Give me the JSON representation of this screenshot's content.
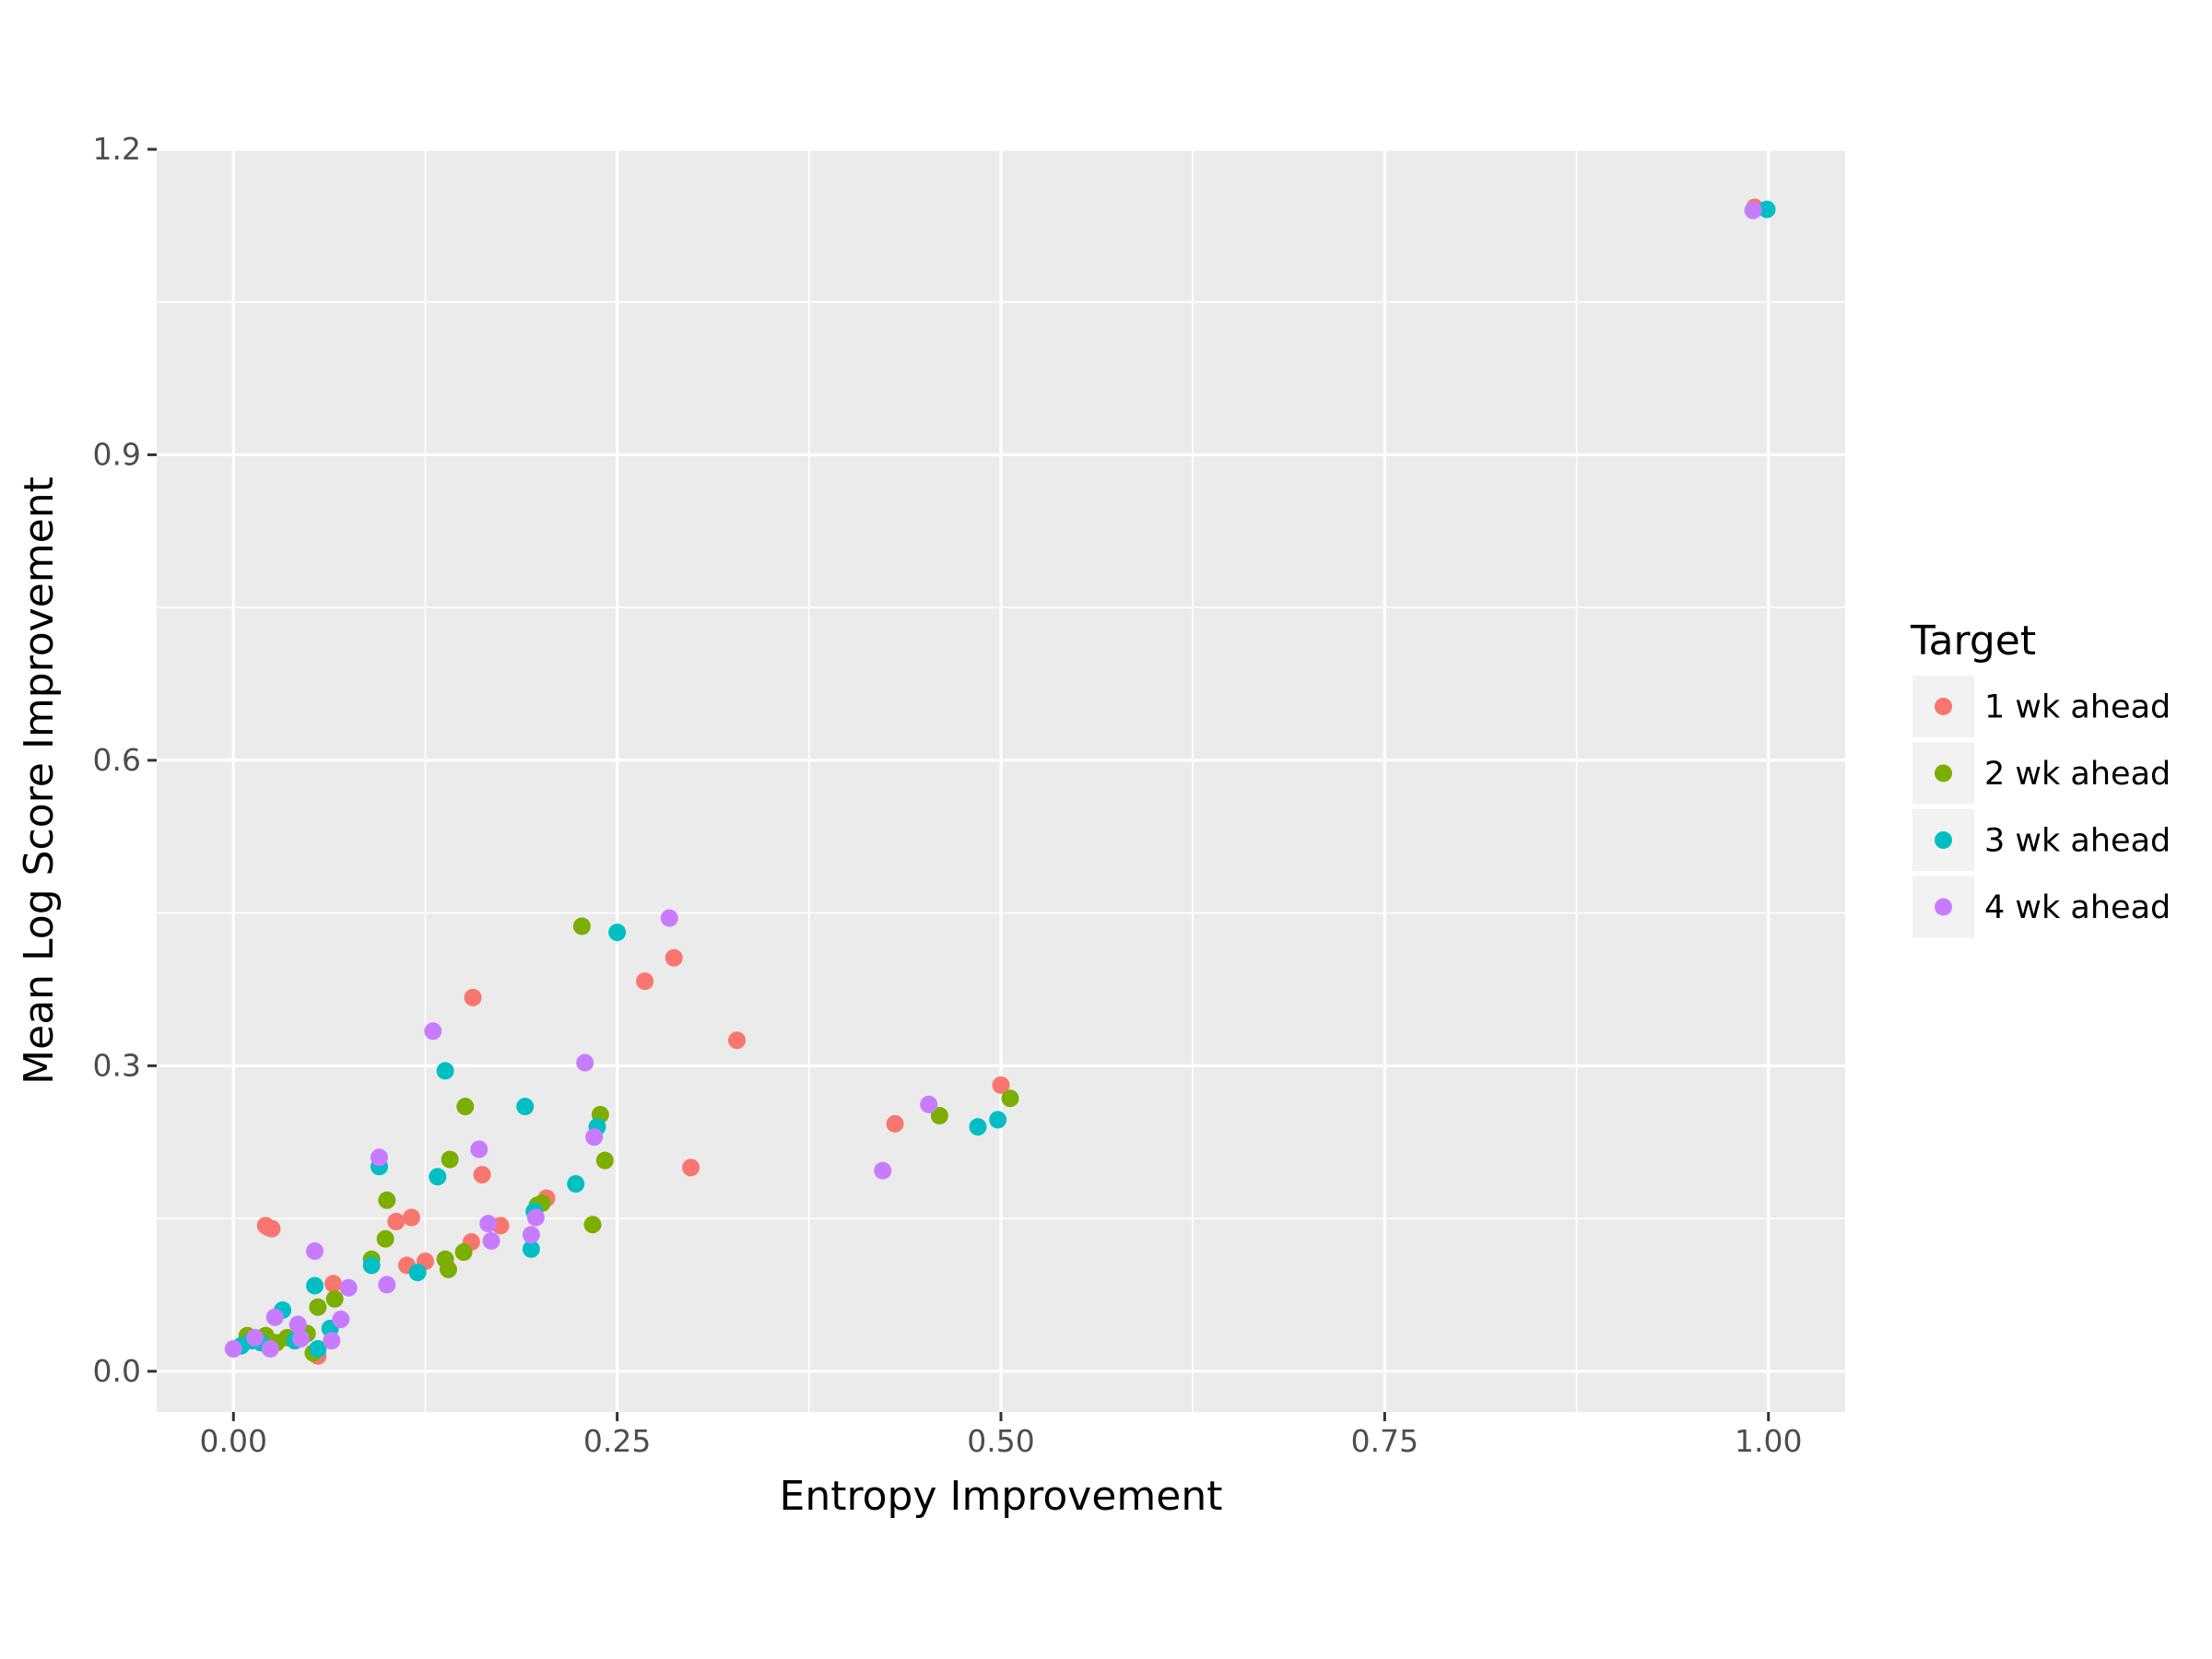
{
  "chart_data": {
    "type": "scatter",
    "title": "",
    "xlabel": "Entropy Improvement",
    "ylabel": "Mean Log Score Improvement",
    "xlim": [
      -0.05,
      1.05
    ],
    "ylim": [
      -0.04,
      1.2
    ],
    "x_ticks": [
      0.0,
      0.25,
      0.5,
      0.75,
      1.0
    ],
    "x_tick_labels": [
      "0.00",
      "0.25",
      "0.50",
      "0.75",
      "1.00"
    ],
    "y_ticks": [
      0.0,
      0.3,
      0.6,
      0.9,
      1.2
    ],
    "y_tick_labels": [
      "0.0",
      "0.3",
      "0.6",
      "0.9",
      "1.2"
    ],
    "grid": true,
    "legend": {
      "title": "Target",
      "position": "right"
    },
    "series": [
      {
        "name": "1 wk ahead",
        "color": "#F8766D",
        "points": [
          [
            0.021,
            0.143
          ],
          [
            0.023,
            0.141
          ],
          [
            0.025,
            0.14
          ],
          [
            0.055,
            0.015
          ],
          [
            0.065,
            0.086
          ],
          [
            0.106,
            0.147
          ],
          [
            0.116,
            0.151
          ],
          [
            0.113,
            0.104
          ],
          [
            0.125,
            0.108
          ],
          [
            0.155,
            0.127
          ],
          [
            0.156,
            0.367
          ],
          [
            0.162,
            0.193
          ],
          [
            0.174,
            0.143
          ],
          [
            0.204,
            0.17
          ],
          [
            0.268,
            0.383
          ],
          [
            0.287,
            0.406
          ],
          [
            0.298,
            0.2
          ],
          [
            0.328,
            0.325
          ],
          [
            0.431,
            0.243
          ],
          [
            0.5,
            0.281
          ],
          [
            0.991,
            1.143
          ]
        ]
      },
      {
        "name": "2 wk ahead",
        "color": "#7CAE00",
        "points": [
          [
            0.009,
            0.035
          ],
          [
            0.021,
            0.035
          ],
          [
            0.028,
            0.028
          ],
          [
            0.035,
            0.033
          ],
          [
            0.048,
            0.037
          ],
          [
            0.052,
            0.018
          ],
          [
            0.055,
            0.063
          ],
          [
            0.066,
            0.071
          ],
          [
            0.09,
            0.11
          ],
          [
            0.099,
            0.13
          ],
          [
            0.1,
            0.168
          ],
          [
            0.138,
            0.11
          ],
          [
            0.14,
            0.1
          ],
          [
            0.141,
            0.208
          ],
          [
            0.15,
            0.117
          ],
          [
            0.151,
            0.26
          ],
          [
            0.198,
            0.163
          ],
          [
            0.201,
            0.165
          ],
          [
            0.227,
            0.437
          ],
          [
            0.234,
            0.144
          ],
          [
            0.239,
            0.252
          ],
          [
            0.242,
            0.207
          ],
          [
            0.46,
            0.251
          ],
          [
            0.506,
            0.268
          ]
        ]
      },
      {
        "name": "3 wk ahead",
        "color": "#00BFC4",
        "points": [
          [
            0.005,
            0.025
          ],
          [
            0.012,
            0.03
          ],
          [
            0.018,
            0.028
          ],
          [
            0.032,
            0.06
          ],
          [
            0.04,
            0.03
          ],
          [
            0.053,
            0.084
          ],
          [
            0.055,
            0.022
          ],
          [
            0.063,
            0.042
          ],
          [
            0.09,
            0.104
          ],
          [
            0.095,
            0.201
          ],
          [
            0.12,
            0.097
          ],
          [
            0.133,
            0.191
          ],
          [
            0.138,
            0.295
          ],
          [
            0.19,
            0.26
          ],
          [
            0.194,
            0.12
          ],
          [
            0.196,
            0.157
          ],
          [
            0.223,
            0.184
          ],
          [
            0.237,
            0.24
          ],
          [
            0.25,
            0.431
          ],
          [
            0.485,
            0.24
          ],
          [
            0.498,
            0.247
          ],
          [
            0.999,
            1.141
          ]
        ]
      },
      {
        "name": "4 wk ahead",
        "color": "#C77CFF",
        "points": [
          [
            0.0,
            0.022
          ],
          [
            0.014,
            0.033
          ],
          [
            0.024,
            0.022
          ],
          [
            0.027,
            0.053
          ],
          [
            0.042,
            0.046
          ],
          [
            0.044,
            0.032
          ],
          [
            0.053,
            0.118
          ],
          [
            0.064,
            0.03
          ],
          [
            0.07,
            0.051
          ],
          [
            0.075,
            0.082
          ],
          [
            0.095,
            0.21
          ],
          [
            0.1,
            0.085
          ],
          [
            0.13,
            0.334
          ],
          [
            0.16,
            0.218
          ],
          [
            0.166,
            0.145
          ],
          [
            0.168,
            0.128
          ],
          [
            0.194,
            0.134
          ],
          [
            0.197,
            0.151
          ],
          [
            0.229,
            0.303
          ],
          [
            0.235,
            0.23
          ],
          [
            0.284,
            0.445
          ],
          [
            0.423,
            0.197
          ],
          [
            0.453,
            0.262
          ],
          [
            0.99,
            1.14
          ]
        ]
      }
    ]
  }
}
